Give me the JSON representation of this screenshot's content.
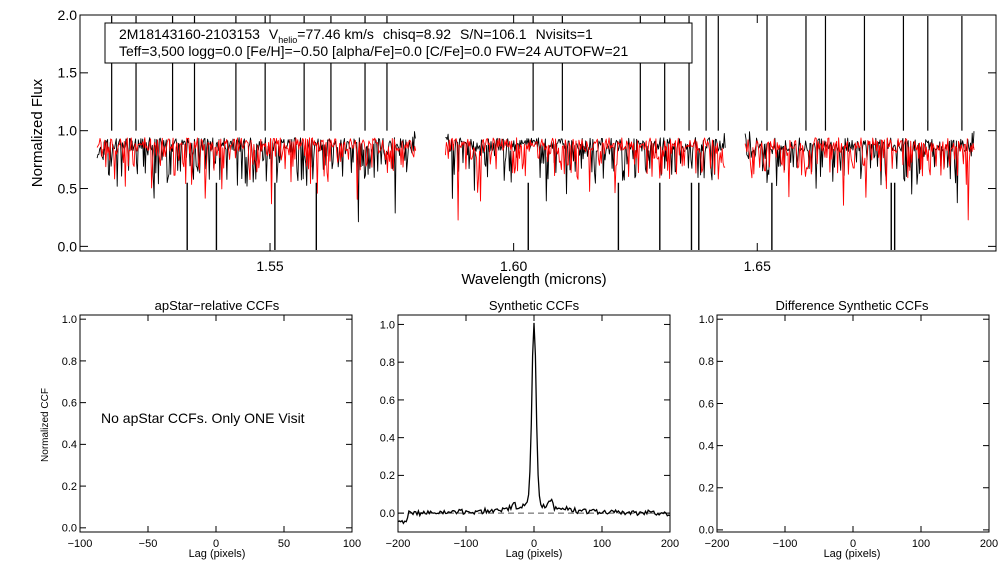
{
  "chart_data": [
    {
      "type": "line",
      "panel": "spectrum",
      "title": "",
      "xlabel": "Wavelength (microns)",
      "ylabel": "Normalized Flux",
      "xlim": [
        1.511,
        1.699
      ],
      "ylim": [
        -0.04,
        2.0
      ],
      "xticks": [
        1.55,
        1.6,
        1.65
      ],
      "xtick_labels": [
        "1.55",
        "1.60",
        "1.65"
      ],
      "yticks": [
        0.0,
        0.5,
        1.0,
        1.5,
        2.0
      ],
      "ytick_labels": [
        "0.0",
        "0.5",
        "1.0",
        "1.5",
        "2.0"
      ],
      "chip_ranges": [
        [
          1.5145,
          1.58
        ],
        [
          1.586,
          1.6435
        ],
        [
          1.6475,
          1.6945
        ]
      ],
      "series": [
        {
          "name": "apStar spectrum",
          "color": "#000000",
          "continuum": 0.88,
          "noise": 0.12
        },
        {
          "name": "synthetic model",
          "color": "#ff0000",
          "continuum": 0.88,
          "noise": 0.1
        }
      ],
      "spikes_up": [
        1.5175,
        1.5225,
        1.53,
        1.5345,
        1.543,
        1.549,
        1.557,
        1.5625,
        1.5695,
        1.574,
        1.604,
        1.61,
        1.626,
        1.631,
        1.636,
        1.6395,
        1.642,
        1.652,
        1.66,
        1.664,
        1.672,
        1.68,
        1.685,
        1.692
      ],
      "spikes_down": [
        1.533,
        1.539,
        1.551,
        1.5595,
        1.603,
        1.6215,
        1.63,
        1.6365,
        1.638,
        1.653,
        1.6775,
        1.6782
      ],
      "annotation": {
        "star_id": "2M18143160-2103153",
        "v_label": "V",
        "v_sub": "helio",
        "v_value": "=77.46 km/s",
        "chisq": "chisq=8.92",
        "snr": "S/N=106.1",
        "nvisits": "Nvisits=1",
        "params": "Teff=3,500 logg=0.0 [Fe/H]=−0.50 [alpha/Fe]=0.0 [C/Fe]=0.0 FW=24 AUTOFW=21"
      }
    },
    {
      "type": "line",
      "panel": "apstar_ccf",
      "title": "apStar−relative CCFs",
      "xlabel": "Lag (pixels)",
      "ylabel": "Normalized CCF",
      "xlim": [
        -100,
        100
      ],
      "ylim": [
        -0.02,
        1.02
      ],
      "xticks": [
        -100,
        -50,
        0,
        50,
        100
      ],
      "xtick_labels": [
        "−100",
        "−50",
        "0",
        "50",
        "100"
      ],
      "yticks": [
        0.0,
        0.2,
        0.4,
        0.6,
        0.8,
        1.0
      ],
      "ytick_labels": [
        "0.0",
        "0.2",
        "0.4",
        "0.6",
        "0.8",
        "1.0"
      ],
      "message": "No apStar CCFs.  Only ONE Visit",
      "series": []
    },
    {
      "type": "line",
      "panel": "synthetic_ccf",
      "title": "Synthetic CCFs",
      "xlabel": "Lag (pixels)",
      "ylabel": "",
      "xlim": [
        -200,
        200
      ],
      "ylim": [
        -0.1,
        1.05
      ],
      "xticks": [
        -200,
        -100,
        0,
        100,
        200
      ],
      "xtick_labels": [
        "−200",
        "−100",
        "0",
        "100",
        "200"
      ],
      "yticks": [
        0.0,
        0.2,
        0.4,
        0.6,
        0.8,
        1.0
      ],
      "ytick_labels": [
        "0.0",
        "0.2",
        "0.4",
        "0.6",
        "0.8",
        "1.0"
      ],
      "reference_line": 0.0,
      "series": [
        {
          "name": "synthetic CCF",
          "color": "#000000",
          "peak_lag": 0,
          "peak_value": 1.0,
          "baseline": 0.0
        }
      ]
    },
    {
      "type": "line",
      "panel": "difference_ccf",
      "title": "Difference Synthetic CCFs",
      "xlabel": "Lag (pixels)",
      "ylabel": "",
      "xlim": [
        -200,
        200
      ],
      "ylim": [
        -0.01,
        1.02
      ],
      "xticks": [
        -200,
        -100,
        0,
        100,
        200
      ],
      "xtick_labels": [
        "−200",
        "−100",
        "0",
        "100",
        "200"
      ],
      "yticks": [
        0.0,
        0.2,
        0.4,
        0.6,
        0.8,
        1.0
      ],
      "ytick_labels": [
        "0.0",
        "0.2",
        "0.4",
        "0.6",
        "0.8",
        "1.0"
      ],
      "series": []
    }
  ]
}
